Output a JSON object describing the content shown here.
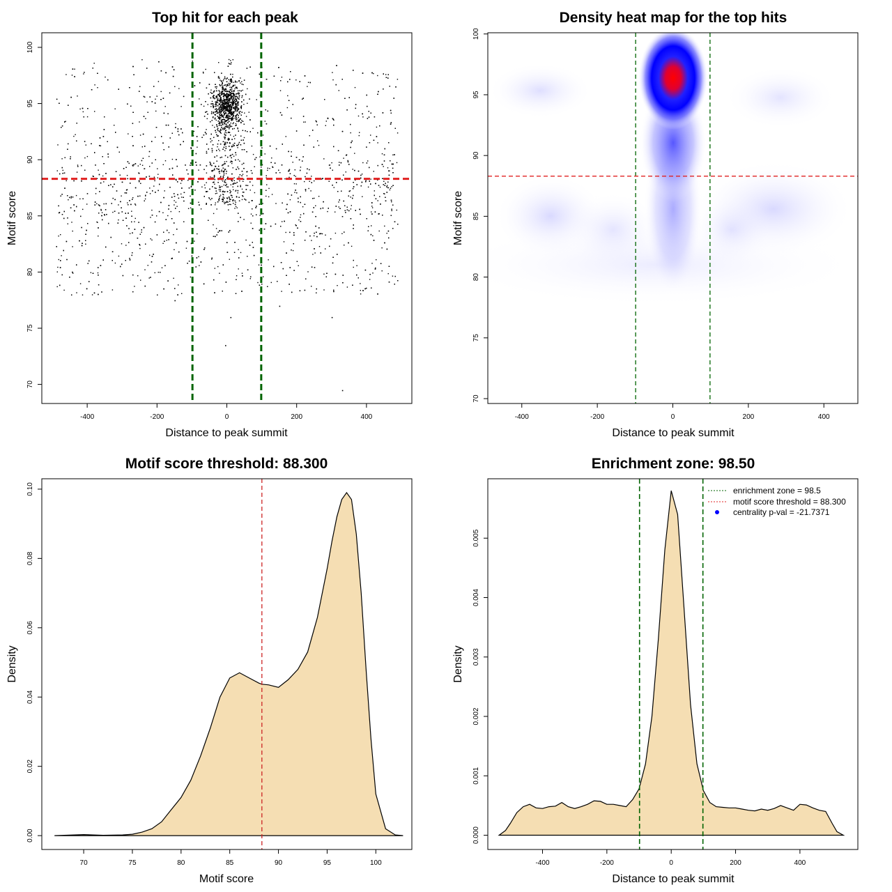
{
  "chart_data": [
    {
      "type": "scatter",
      "title": "Top hit for each peak",
      "xlabel": "Distance to peak summit",
      "ylabel": "Motif score",
      "xlim": [
        -530,
        530
      ],
      "ylim": [
        68.3,
        101.3
      ],
      "x_ticks": [
        "-400",
        "-200",
        "0",
        "200",
        "400"
      ],
      "y_ticks": [
        "70",
        "75",
        "80",
        "85",
        "90",
        "95",
        "100"
      ],
      "x_tick_values": [
        -400,
        -200,
        0,
        200,
        400
      ],
      "y_tick_values": [
        70,
        75,
        80,
        85,
        90,
        95,
        100
      ],
      "hlines": [
        {
          "y": 88.3,
          "color": "#e02020",
          "style": "dashed"
        }
      ],
      "vlines": [
        {
          "x": -98.5,
          "color": "#006400",
          "style": "dashed"
        },
        {
          "x": 98.5,
          "color": "#006400",
          "style": "dashed"
        }
      ],
      "point_count": 4800,
      "point_color": "#000000",
      "point_distribution_note": "dense cluster near x=0, y=94-99; uniform background x in [-490,490], y in [77,99]"
    },
    {
      "type": "heatmap",
      "title": "Density heat map for the top hits",
      "xlabel": "Distance to peak summit",
      "ylabel": "Motif score",
      "xlim": [
        -490,
        490
      ],
      "ylim": [
        69.6,
        100.1
      ],
      "x_ticks": [
        "-400",
        "-200",
        "0",
        "200",
        "400"
      ],
      "y_ticks": [
        "70",
        "75",
        "80",
        "85",
        "90",
        "95",
        "100"
      ],
      "x_tick_values": [
        -400,
        -200,
        0,
        200,
        400
      ],
      "y_tick_values": [
        70,
        75,
        80,
        85,
        90,
        95,
        100
      ],
      "hlines": [
        {
          "y": 88.3,
          "color": "#e02020",
          "style": "dashed"
        }
      ],
      "vlines": [
        {
          "x": -98.5,
          "color": "#006400",
          "style": "dashed"
        },
        {
          "x": 98.5,
          "color": "#006400",
          "style": "dashed"
        }
      ],
      "density_peak": {
        "x": 0,
        "y": 97
      },
      "colors": [
        "#ffffff",
        "#0000ff",
        "#ff0000"
      ]
    },
    {
      "type": "area",
      "title": "Motif score threshold: 88.300",
      "xlabel": "Motif score",
      "ylabel": "Density",
      "xlim": [
        65.7,
        103.7
      ],
      "ylim": [
        -0.004,
        0.103
      ],
      "x_ticks": [
        "70",
        "75",
        "80",
        "85",
        "90",
        "95",
        "100"
      ],
      "y_ticks": [
        "0.00",
        "0.02",
        "0.04",
        "0.06",
        "0.08",
        "0.10"
      ],
      "x_tick_values": [
        70,
        75,
        80,
        85,
        90,
        95,
        100
      ],
      "y_tick_values": [
        0,
        0.02,
        0.04,
        0.06,
        0.08,
        0.1
      ],
      "fill": "#f5deb3",
      "vlines": [
        {
          "x": 88.3,
          "color": "#cc2222",
          "style": "dashed"
        }
      ],
      "x": [
        67,
        69,
        70,
        72,
        74,
        75,
        76,
        77,
        78,
        79,
        80,
        81,
        82,
        83,
        84,
        85,
        86,
        87,
        88,
        88.3,
        89,
        90,
        91,
        92,
        93,
        94,
        95,
        95.5,
        96,
        96.5,
        97,
        97.5,
        98,
        98.5,
        99,
        99.5,
        100,
        101,
        102,
        102.8
      ],
      "y": [
        0.0,
        0.0002,
        0.0003,
        0.0001,
        0.0002,
        0.0004,
        0.001,
        0.002,
        0.004,
        0.0075,
        0.011,
        0.016,
        0.023,
        0.031,
        0.04,
        0.0455,
        0.047,
        0.0455,
        0.044,
        0.0437,
        0.0435,
        0.0428,
        0.045,
        0.048,
        0.053,
        0.063,
        0.077,
        0.085,
        0.092,
        0.097,
        0.099,
        0.097,
        0.087,
        0.07,
        0.048,
        0.028,
        0.012,
        0.002,
        0.0002,
        0.0
      ]
    },
    {
      "type": "area",
      "title": "Enrichment zone: 98.50",
      "xlabel": "Distance to peak summit",
      "ylabel": "Density",
      "xlim": [
        -570,
        580
      ],
      "ylim": [
        -0.00024,
        0.006
      ],
      "x_ticks": [
        "-400",
        "-200",
        "0",
        "200",
        "400"
      ],
      "y_ticks": [
        "0.000",
        "0.001",
        "0.002",
        "0.003",
        "0.004",
        "0.005"
      ],
      "x_tick_values": [
        -400,
        -200,
        0,
        200,
        400
      ],
      "y_tick_values": [
        0,
        0.001,
        0.002,
        0.003,
        0.004,
        0.005
      ],
      "fill": "#f5deb3",
      "vlines": [
        {
          "x": -98.5,
          "color": "#006400",
          "style": "dashed"
        },
        {
          "x": 98.5,
          "color": "#006400",
          "style": "dashed"
        }
      ],
      "x": [
        -535,
        -515,
        -500,
        -480,
        -460,
        -440,
        -420,
        -400,
        -380,
        -360,
        -340,
        -320,
        -300,
        -280,
        -260,
        -240,
        -220,
        -200,
        -180,
        -160,
        -140,
        -120,
        -100,
        -80,
        -60,
        -40,
        -20,
        0,
        20,
        40,
        60,
        80,
        100,
        120,
        140,
        160,
        180,
        200,
        220,
        240,
        260,
        280,
        300,
        320,
        340,
        360,
        380,
        400,
        420,
        440,
        460,
        480,
        500,
        515,
        535
      ],
      "y": [
        0.0,
        8e-05,
        0.0002,
        0.00038,
        0.00048,
        0.00052,
        0.00046,
        0.00045,
        0.00048,
        0.00049,
        0.00055,
        0.00048,
        0.00045,
        0.00048,
        0.00052,
        0.00058,
        0.00057,
        0.00052,
        0.00052,
        0.0005,
        0.00048,
        0.0006,
        0.00078,
        0.0012,
        0.002,
        0.0033,
        0.0048,
        0.0058,
        0.0054,
        0.0038,
        0.0022,
        0.0012,
        0.00075,
        0.00055,
        0.00048,
        0.00047,
        0.00046,
        0.00046,
        0.00044,
        0.00042,
        0.00041,
        0.00044,
        0.00042,
        0.00045,
        0.0005,
        0.00046,
        0.00042,
        0.00052,
        0.00051,
        0.00046,
        0.00042,
        0.0004,
        0.0002,
        6e-05,
        0.0
      ],
      "legend": [
        {
          "label": "enrichment zone = 98.5",
          "color": "#006400",
          "kind": "line"
        },
        {
          "label": "motif score threshold = 88.300",
          "color": "#e02020",
          "kind": "line"
        },
        {
          "label": "centrality p-val = -21.7371",
          "color": "#0000ff",
          "kind": "point"
        }
      ]
    }
  ]
}
